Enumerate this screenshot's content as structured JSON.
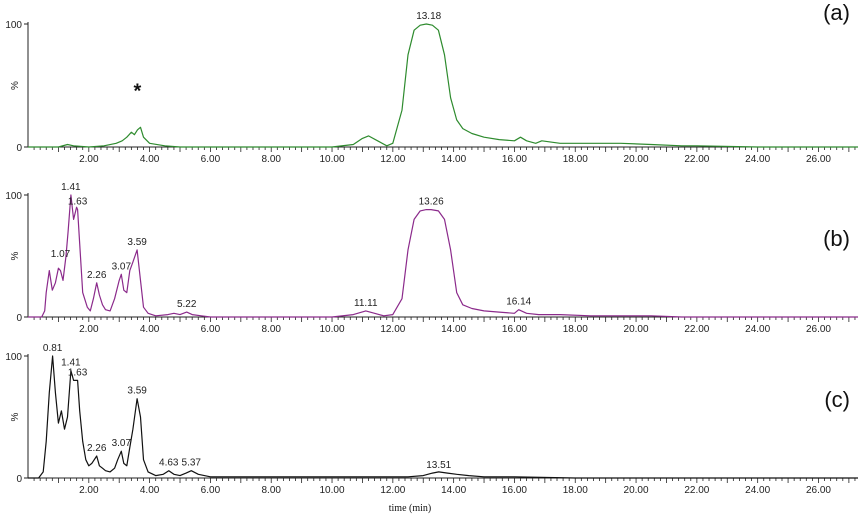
{
  "chart_data": [
    {
      "type": "line",
      "panel_label": "(a)",
      "y_unit_label": "%",
      "y_ticks": [
        "0",
        "100"
      ],
      "ylim": [
        0,
        100
      ],
      "xlim": [
        0,
        27.3
      ],
      "x_ticks": [
        "2.00",
        "4.00",
        "6.00",
        "8.00",
        "10.00",
        "12.00",
        "14.00",
        "16.00",
        "18.00",
        "20.00",
        "22.00",
        "24.00",
        "26.00"
      ],
      "color": "#2e8b2e",
      "peak_labels": [
        {
          "x": 13.18,
          "y": 100,
          "text": "13.18"
        }
      ],
      "marker": {
        "x": 3.6,
        "y": 45,
        "text": "*"
      },
      "series": [
        {
          "x": [
            0,
            1,
            1.3,
            1.5,
            2,
            2.5,
            2.9,
            3.1,
            3.25,
            3.4,
            3.5,
            3.6,
            3.7,
            3.8,
            4,
            4.5,
            5,
            6,
            8,
            9,
            10,
            10.7,
            11.0,
            11.2,
            11.5,
            11.8,
            12.0,
            12.3,
            12.5,
            12.7,
            12.9,
            13.1,
            13.3,
            13.5,
            13.7,
            13.9,
            14.1,
            14.3,
            14.6,
            15,
            15.5,
            16,
            16.2,
            16.4,
            16.7,
            16.9,
            17.5,
            18.5,
            19.5,
            20.5,
            21.5,
            22,
            24,
            27.3
          ],
          "y": [
            0,
            0,
            2,
            1,
            0,
            1,
            3,
            5,
            8,
            12,
            10,
            14,
            16,
            8,
            3,
            1,
            0,
            0,
            0,
            0,
            0,
            2,
            7,
            9,
            5,
            1,
            3,
            30,
            75,
            95,
            99,
            100,
            99,
            95,
            75,
            40,
            22,
            15,
            11,
            8,
            6,
            5,
            8,
            5,
            3,
            5,
            3,
            3,
            3,
            2,
            1,
            1,
            0,
            0
          ]
        }
      ]
    },
    {
      "type": "line",
      "panel_label": "(b)",
      "y_unit_label": "%",
      "y_ticks": [
        "0",
        "100"
      ],
      "ylim": [
        0,
        100
      ],
      "xlim": [
        0,
        27.3
      ],
      "x_ticks": [
        "2.00",
        "4.00",
        "6.00",
        "8.00",
        "10.00",
        "12.00",
        "14.00",
        "16.00",
        "18.00",
        "20.00",
        "22.00",
        "24.00",
        "26.00"
      ],
      "color": "#8b2a8b",
      "peak_labels": [
        {
          "x": 1.07,
          "y": 45,
          "text": "1.07"
        },
        {
          "x": 1.41,
          "y": 100,
          "text": "1.41"
        },
        {
          "x": 1.63,
          "y": 88,
          "text": "1.63"
        },
        {
          "x": 2.26,
          "y": 28,
          "text": "2.26"
        },
        {
          "x": 3.07,
          "y": 35,
          "text": "3.07"
        },
        {
          "x": 3.59,
          "y": 55,
          "text": "3.59"
        },
        {
          "x": 5.22,
          "y": 4,
          "text": "5.22"
        },
        {
          "x": 11.11,
          "y": 5,
          "text": "11.11"
        },
        {
          "x": 13.26,
          "y": 88,
          "text": "13.26"
        },
        {
          "x": 16.14,
          "y": 6,
          "text": "16.14"
        }
      ],
      "series": [
        {
          "x": [
            0,
            0.45,
            0.55,
            0.6,
            0.7,
            0.8,
            0.9,
            1.0,
            1.07,
            1.15,
            1.25,
            1.32,
            1.41,
            1.5,
            1.6,
            1.63,
            1.7,
            1.8,
            1.95,
            2.05,
            2.15,
            2.26,
            2.35,
            2.45,
            2.55,
            2.7,
            2.85,
            3.0,
            3.07,
            3.15,
            3.25,
            3.35,
            3.45,
            3.59,
            3.7,
            3.8,
            3.95,
            4.2,
            4.6,
            4.8,
            5.0,
            5.22,
            5.4,
            5.7,
            6,
            8,
            10,
            10.7,
            11.11,
            11.4,
            11.7,
            12.0,
            12.3,
            12.5,
            12.7,
            12.9,
            13.1,
            13.26,
            13.5,
            13.7,
            13.9,
            14.1,
            14.3,
            14.6,
            15,
            15.5,
            16,
            16.14,
            16.4,
            16.8,
            17.5,
            18.5,
            19.5,
            20.5,
            21.5,
            22,
            24,
            27.3
          ],
          "y": [
            0,
            0,
            5,
            20,
            38,
            22,
            28,
            40,
            38,
            30,
            50,
            70,
            100,
            80,
            90,
            88,
            60,
            20,
            8,
            5,
            15,
            28,
            18,
            10,
            6,
            5,
            15,
            30,
            35,
            22,
            20,
            38,
            45,
            55,
            30,
            8,
            3,
            1,
            2,
            3,
            2,
            4,
            2,
            1,
            0,
            0,
            0,
            2,
            5,
            3,
            1,
            2,
            15,
            55,
            80,
            87,
            88,
            88,
            87,
            80,
            55,
            20,
            10,
            7,
            5,
            4,
            3,
            6,
            3,
            2,
            2,
            1,
            1,
            1,
            0,
            0,
            0,
            0
          ]
        }
      ]
    },
    {
      "type": "line",
      "panel_label": "(c)",
      "y_unit_label": "%",
      "y_ticks": [
        "0",
        "100"
      ],
      "ylim": [
        0,
        100
      ],
      "xlim": [
        0,
        27.3
      ],
      "x_ticks": [
        "2.00",
        "4.00",
        "6.00",
        "8.00",
        "10.00",
        "12.00",
        "14.00",
        "16.00",
        "18.00",
        "20.00",
        "22.00",
        "24.00",
        "26.00"
      ],
      "color": "#111111",
      "x_axis_title": "time (min)",
      "peak_labels": [
        {
          "x": 0.81,
          "y": 100,
          "text": "0.81"
        },
        {
          "x": 1.41,
          "y": 88,
          "text": "1.41"
        },
        {
          "x": 1.63,
          "y": 80,
          "text": "1.63"
        },
        {
          "x": 2.26,
          "y": 18,
          "text": "2.26"
        },
        {
          "x": 3.07,
          "y": 22,
          "text": "3.07"
        },
        {
          "x": 3.59,
          "y": 65,
          "text": "3.59"
        },
        {
          "x": 4.63,
          "y": 6,
          "text": "4.63"
        },
        {
          "x": 5.37,
          "y": 6,
          "text": "5.37"
        },
        {
          "x": 13.51,
          "y": 4,
          "text": "13.51"
        }
      ],
      "series": [
        {
          "x": [
            0,
            0.35,
            0.5,
            0.6,
            0.7,
            0.81,
            0.9,
            1.0,
            1.1,
            1.2,
            1.3,
            1.41,
            1.5,
            1.63,
            1.7,
            1.8,
            1.9,
            2.0,
            2.1,
            2.26,
            2.35,
            2.45,
            2.55,
            2.7,
            2.85,
            2.95,
            3.07,
            3.15,
            3.25,
            3.35,
            3.45,
            3.59,
            3.7,
            3.8,
            3.95,
            4.2,
            4.45,
            4.63,
            4.8,
            5.0,
            5.2,
            5.37,
            5.6,
            6,
            8,
            10,
            11,
            12,
            12.5,
            13.0,
            13.3,
            13.51,
            13.8,
            14.1,
            14.5,
            15,
            16,
            18,
            20,
            22,
            24,
            27.3
          ],
          "y": [
            0,
            0,
            5,
            30,
            70,
            100,
            70,
            45,
            55,
            40,
            50,
            88,
            80,
            80,
            55,
            30,
            15,
            10,
            12,
            18,
            10,
            8,
            6,
            5,
            8,
            15,
            22,
            12,
            10,
            25,
            40,
            65,
            50,
            15,
            5,
            2,
            3,
            6,
            3,
            2,
            4,
            6,
            3,
            1,
            1,
            1,
            1,
            1,
            1,
            2,
            4,
            5,
            4,
            3,
            2,
            1,
            1,
            0,
            0,
            0,
            0,
            0
          ]
        }
      ]
    }
  ]
}
